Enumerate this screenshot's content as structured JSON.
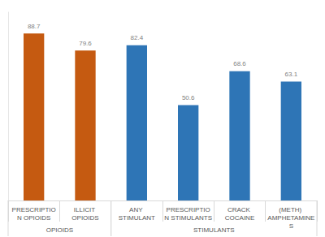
{
  "chart_data": {
    "type": "bar",
    "categories": [
      "PRESCRIPTION OPIOIDS",
      "ILLICIT OPIOIDS",
      "ANY STIMULANT",
      "PRESCRIPTION STIMULANTS",
      "CRACK COCAINE",
      "(METH) AMPHETAMINES"
    ],
    "values": [
      88.7,
      79.6,
      82.4,
      50.6,
      68.6,
      63.1
    ],
    "colors": [
      "#c55a11",
      "#c55a11",
      "#2e75b6",
      "#2e75b6",
      "#2e75b6",
      "#2e75b6"
    ],
    "groups": [
      {
        "name": "OPIOIDS",
        "categories": [
          "PRESCRIPTION OPIOIDS",
          "ILLICIT OPIOIDS"
        ]
      },
      {
        "name": "STIMULANTS",
        "categories": [
          "ANY STIMULANT",
          "PRESCRIPTION STIMULANTS",
          "CRACK COCAINE",
          "(METH) AMPHETAMINES"
        ]
      }
    ],
    "ylim": [
      0,
      100
    ],
    "grid": false,
    "data_labels": true,
    "tick_labels": "x"
  }
}
